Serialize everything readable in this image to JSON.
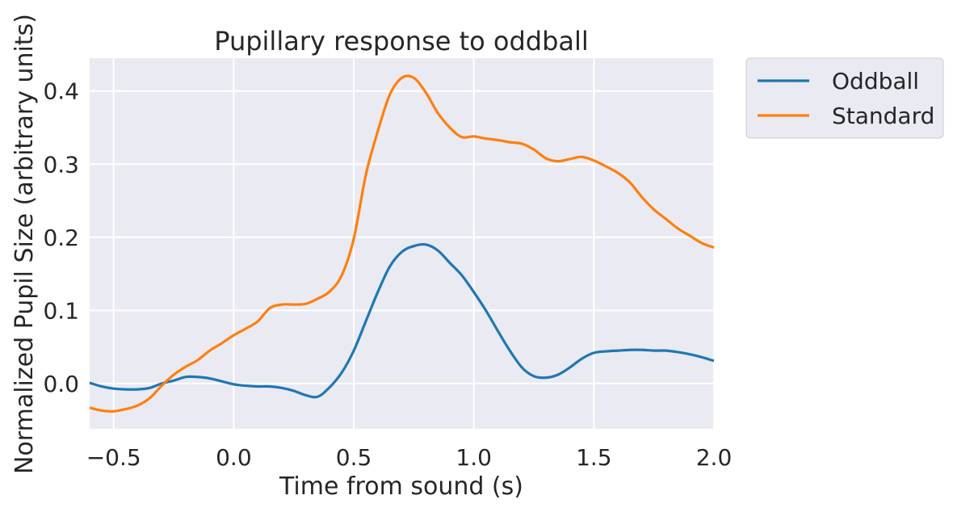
{
  "chart_data": {
    "type": "line",
    "title": "Pupillary response to oddball",
    "xlabel": "Time from sound (s)",
    "ylabel": "Normalized Pupil Size (arbitrary units)",
    "xlim": [
      -0.6,
      2.0
    ],
    "ylim": [
      -0.062,
      0.445
    ],
    "x_ticks": [
      -0.5,
      0.0,
      0.5,
      1.0,
      1.5,
      2.0
    ],
    "x_tick_labels": [
      "−0.5",
      "0.0",
      "0.5",
      "1.0",
      "1.5",
      "2.0"
    ],
    "y_ticks": [
      0.0,
      0.1,
      0.2,
      0.3,
      0.4
    ],
    "y_tick_labels": [
      "0.0",
      "0.1",
      "0.2",
      "0.3",
      "0.4"
    ],
    "grid": true,
    "legend_position": "outside-top-right",
    "background_color": "#eaeaf2",
    "grid_color": "#ffffff",
    "series": [
      {
        "name": "Oddball",
        "color": "#1f77b4",
        "x": [
          -0.6,
          -0.55,
          -0.5,
          -0.45,
          -0.4,
          -0.35,
          -0.3,
          -0.25,
          -0.2,
          -0.15,
          -0.1,
          -0.05,
          0.0,
          0.05,
          0.1,
          0.15,
          0.2,
          0.25,
          0.3,
          0.35,
          0.4,
          0.45,
          0.5,
          0.55,
          0.6,
          0.65,
          0.7,
          0.75,
          0.8,
          0.85,
          0.9,
          0.95,
          1.0,
          1.05,
          1.1,
          1.15,
          1.2,
          1.25,
          1.3,
          1.35,
          1.4,
          1.45,
          1.5,
          1.55,
          1.6,
          1.65,
          1.7,
          1.75,
          1.8,
          1.85,
          1.9,
          1.95,
          2.0
        ],
        "y": [
          0.001,
          -0.004,
          -0.007,
          -0.008,
          -0.008,
          -0.006,
          0.0,
          0.004,
          0.009,
          0.009,
          0.007,
          0.003,
          -0.001,
          -0.003,
          -0.004,
          -0.004,
          -0.006,
          -0.01,
          -0.016,
          -0.018,
          -0.005,
          0.015,
          0.045,
          0.085,
          0.125,
          0.16,
          0.18,
          0.188,
          0.19,
          0.182,
          0.165,
          0.148,
          0.125,
          0.1,
          0.072,
          0.045,
          0.022,
          0.01,
          0.008,
          0.012,
          0.022,
          0.034,
          0.042,
          0.044,
          0.045,
          0.046,
          0.046,
          0.045,
          0.045,
          0.043,
          0.04,
          0.036,
          0.031
        ]
      },
      {
        "name": "Standard",
        "color": "#ff7f0e",
        "x": [
          -0.6,
          -0.55,
          -0.5,
          -0.45,
          -0.4,
          -0.35,
          -0.3,
          -0.25,
          -0.2,
          -0.15,
          -0.1,
          -0.05,
          0.0,
          0.05,
          0.1,
          0.15,
          0.2,
          0.25,
          0.3,
          0.35,
          0.4,
          0.45,
          0.5,
          0.55,
          0.6,
          0.65,
          0.7,
          0.75,
          0.8,
          0.85,
          0.9,
          0.95,
          1.0,
          1.05,
          1.1,
          1.15,
          1.2,
          1.25,
          1.3,
          1.35,
          1.4,
          1.45,
          1.5,
          1.55,
          1.6,
          1.65,
          1.7,
          1.75,
          1.8,
          1.85,
          1.9,
          1.95,
          2.0
        ],
        "y": [
          -0.033,
          -0.037,
          -0.038,
          -0.035,
          -0.03,
          -0.02,
          -0.003,
          0.012,
          0.023,
          0.032,
          0.045,
          0.055,
          0.066,
          0.075,
          0.085,
          0.103,
          0.108,
          0.108,
          0.109,
          0.116,
          0.126,
          0.148,
          0.198,
          0.285,
          0.345,
          0.395,
          0.418,
          0.418,
          0.398,
          0.37,
          0.35,
          0.337,
          0.338,
          0.335,
          0.333,
          0.33,
          0.328,
          0.32,
          0.308,
          0.304,
          0.307,
          0.31,
          0.305,
          0.297,
          0.288,
          0.275,
          0.255,
          0.238,
          0.225,
          0.212,
          0.202,
          0.192,
          0.186
        ]
      }
    ]
  }
}
